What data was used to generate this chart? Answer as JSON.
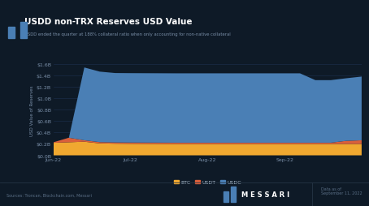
{
  "title": "USDD non-TRX Reserves USD Value",
  "subtitle": "USDD ended the quarter at 188% collateral ratio when only accounting for non-native collateral",
  "bg_color": "#0e1a27",
  "plot_bg_color": "#0e1a27",
  "ylabel": "USD Value of Reserves",
  "source_text": "Sources: Troncan, Blockchain.com, Messari",
  "date_text": "Data as of\nSeptember 11, 2022",
  "legend_labels": [
    "BTC",
    "USDT",
    "USDC"
  ],
  "colors": [
    "#f0a830",
    "#d95f3b",
    "#4a7fb5"
  ],
  "x_labels": [
    "Jun-22",
    "Jul-22",
    "Aug-22",
    "Sep-22"
  ],
  "ytick_labels": [
    "$0.0B",
    "$0.2B",
    "$0.4B",
    "$0.6B",
    "$0.8B",
    "$1.0B",
    "$1.2B",
    "$1.4B",
    "$1.6B"
  ],
  "yticks": [
    0.0,
    0.2,
    0.4,
    0.6,
    0.8,
    1.0,
    1.2,
    1.4,
    1.6
  ],
  "x": [
    0,
    1,
    2,
    3,
    4,
    5,
    6,
    7,
    8,
    9,
    10,
    11,
    12,
    13,
    14,
    15,
    16,
    17,
    18,
    19,
    20
  ],
  "btc": [
    0.22,
    0.23,
    0.24,
    0.21,
    0.205,
    0.203,
    0.202,
    0.201,
    0.2,
    0.2,
    0.2,
    0.2,
    0.2,
    0.2,
    0.2,
    0.2,
    0.2,
    0.2,
    0.2,
    0.2,
    0.2
  ],
  "usdt": [
    0.01,
    0.08,
    0.025,
    0.022,
    0.022,
    0.022,
    0.022,
    0.022,
    0.022,
    0.022,
    0.022,
    0.022,
    0.022,
    0.022,
    0.022,
    0.022,
    0.022,
    0.022,
    0.022,
    0.055,
    0.065
  ],
  "usdc": [
    0.0,
    0.0,
    1.28,
    1.24,
    1.22,
    1.22,
    1.22,
    1.22,
    1.22,
    1.22,
    1.22,
    1.22,
    1.22,
    1.22,
    1.22,
    1.22,
    1.22,
    1.1,
    1.1,
    1.1,
    1.12
  ]
}
